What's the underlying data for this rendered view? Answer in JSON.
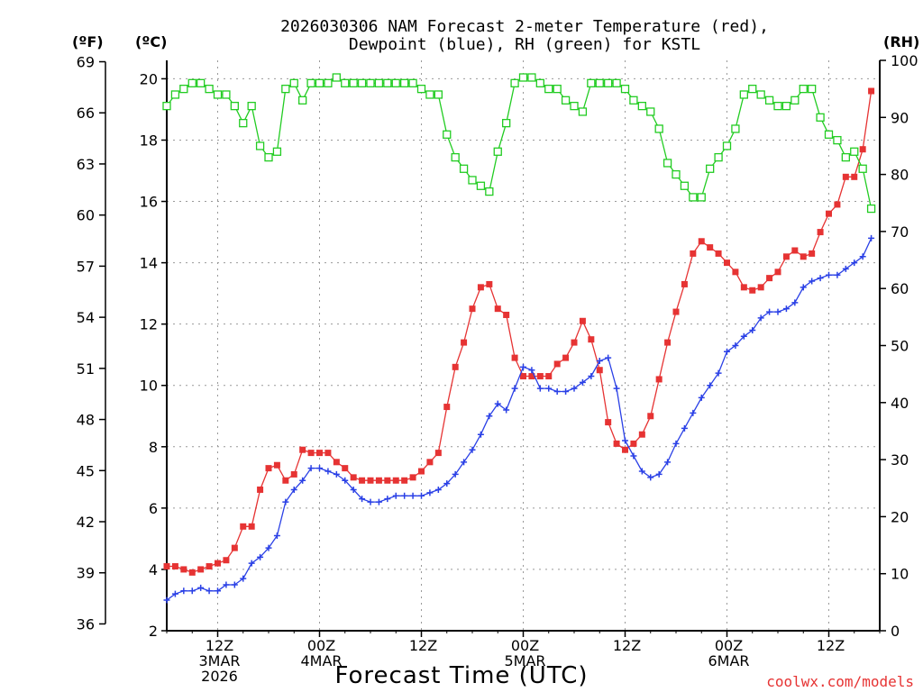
{
  "chart_data": {
    "type": "line",
    "title": [
      "2026030306 NAM Forecast 2-meter Temperature (red),",
      "Dewpoint (blue), RH (green) for KSTL"
    ],
    "left_outer_unit": "(ºF)",
    "left_inner_unit": "(ºC)",
    "right_unit": "(RH)",
    "xlabel": "Forecast Time (UTC)",
    "credit": "coolwx.com/models",
    "x_range_hours": [
      6,
      90
    ],
    "celsius_axis": {
      "ylim": [
        2,
        20.6
      ],
      "ticks": [
        2,
        4,
        6,
        8,
        10,
        12,
        14,
        16,
        18,
        20
      ]
    },
    "fahrenheit_axis": {
      "ticks": [
        36,
        39,
        42,
        45,
        48,
        51,
        54,
        57,
        60,
        63,
        66,
        69
      ]
    },
    "rh_axis": {
      "ylim": [
        0,
        100
      ],
      "ticks": [
        0,
        10,
        20,
        30,
        40,
        50,
        60,
        70,
        80,
        90,
        100
      ]
    },
    "x_ticks": [
      {
        "hour": 12,
        "lines": [
          "12Z",
          "3MAR",
          "2026"
        ]
      },
      {
        "hour": 24,
        "lines": [
          "00Z",
          "4MAR"
        ]
      },
      {
        "hour": 36,
        "lines": [
          "12Z"
        ]
      },
      {
        "hour": 48,
        "lines": [
          "00Z",
          "5MAR"
        ]
      },
      {
        "hour": 60,
        "lines": [
          "12Z"
        ]
      },
      {
        "hour": 72,
        "lines": [
          "00Z",
          "6MAR"
        ]
      },
      {
        "hour": 84,
        "lines": [
          "12Z"
        ]
      }
    ],
    "series": [
      {
        "name": "Temperature",
        "unit": "C",
        "color": "#e63333",
        "marker": "filled-square",
        "points": [
          [
            6,
            4.1
          ],
          [
            7,
            4.1
          ],
          [
            8,
            4.0
          ],
          [
            9,
            3.9
          ],
          [
            10,
            4.0
          ],
          [
            11,
            4.1
          ],
          [
            12,
            4.2
          ],
          [
            13,
            4.3
          ],
          [
            14,
            4.7
          ],
          [
            15,
            5.4
          ],
          [
            16,
            5.4
          ],
          [
            17,
            6.6
          ],
          [
            18,
            7.3
          ],
          [
            19,
            7.4
          ],
          [
            20,
            6.9
          ],
          [
            21,
            7.1
          ],
          [
            22,
            7.9
          ],
          [
            23,
            7.8
          ],
          [
            24,
            7.8
          ],
          [
            25,
            7.8
          ],
          [
            26,
            7.5
          ],
          [
            27,
            7.3
          ],
          [
            28,
            7.0
          ],
          [
            29,
            6.9
          ],
          [
            30,
            6.9
          ],
          [
            31,
            6.9
          ],
          [
            32,
            6.9
          ],
          [
            33,
            6.9
          ],
          [
            34,
            6.9
          ],
          [
            35,
            7.0
          ],
          [
            36,
            7.2
          ],
          [
            37,
            7.5
          ],
          [
            38,
            7.8
          ],
          [
            39,
            9.3
          ],
          [
            40,
            10.6
          ],
          [
            41,
            11.4
          ],
          [
            42,
            12.5
          ],
          [
            43,
            13.2
          ],
          [
            44,
            13.3
          ],
          [
            45,
            12.5
          ],
          [
            46,
            12.3
          ],
          [
            47,
            10.9
          ],
          [
            48,
            10.3
          ],
          [
            49,
            10.3
          ],
          [
            50,
            10.3
          ],
          [
            51,
            10.3
          ],
          [
            52,
            10.7
          ],
          [
            53,
            10.9
          ],
          [
            54,
            11.4
          ],
          [
            55,
            12.1
          ],
          [
            56,
            11.5
          ],
          [
            57,
            10.5
          ],
          [
            58,
            8.8
          ],
          [
            59,
            8.1
          ],
          [
            60,
            7.9
          ],
          [
            61,
            8.1
          ],
          [
            62,
            8.4
          ],
          [
            63,
            9.0
          ],
          [
            64,
            10.2
          ],
          [
            65,
            11.4
          ],
          [
            66,
            12.4
          ],
          [
            67,
            13.3
          ],
          [
            68,
            14.3
          ],
          [
            69,
            14.7
          ],
          [
            70,
            14.5
          ],
          [
            71,
            14.3
          ],
          [
            72,
            14.0
          ],
          [
            73,
            13.7
          ],
          [
            74,
            13.2
          ],
          [
            75,
            13.1
          ],
          [
            76,
            13.2
          ],
          [
            77,
            13.5
          ],
          [
            78,
            13.7
          ],
          [
            79,
            14.2
          ],
          [
            80,
            14.4
          ],
          [
            81,
            14.2
          ],
          [
            82,
            14.3
          ],
          [
            83,
            15.0
          ],
          [
            84,
            15.6
          ],
          [
            85,
            15.9
          ],
          [
            86,
            16.8
          ],
          [
            87,
            16.8
          ],
          [
            88,
            17.7
          ],
          [
            89,
            19.6
          ]
        ]
      },
      {
        "name": "Dewpoint",
        "unit": "C",
        "color": "#2a40e6",
        "marker": "plus",
        "points": [
          [
            6,
            3.0
          ],
          [
            7,
            3.2
          ],
          [
            8,
            3.3
          ],
          [
            9,
            3.3
          ],
          [
            10,
            3.4
          ],
          [
            11,
            3.3
          ],
          [
            12,
            3.3
          ],
          [
            13,
            3.5
          ],
          [
            14,
            3.5
          ],
          [
            15,
            3.7
          ],
          [
            16,
            4.2
          ],
          [
            17,
            4.4
          ],
          [
            18,
            4.7
          ],
          [
            19,
            5.1
          ],
          [
            20,
            6.2
          ],
          [
            21,
            6.6
          ],
          [
            22,
            6.9
          ],
          [
            23,
            7.3
          ],
          [
            24,
            7.3
          ],
          [
            25,
            7.2
          ],
          [
            26,
            7.1
          ],
          [
            27,
            6.9
          ],
          [
            28,
            6.6
          ],
          [
            29,
            6.3
          ],
          [
            30,
            6.2
          ],
          [
            31,
            6.2
          ],
          [
            32,
            6.3
          ],
          [
            33,
            6.4
          ],
          [
            34,
            6.4
          ],
          [
            35,
            6.4
          ],
          [
            36,
            6.4
          ],
          [
            37,
            6.5
          ],
          [
            38,
            6.6
          ],
          [
            39,
            6.8
          ],
          [
            40,
            7.1
          ],
          [
            41,
            7.5
          ],
          [
            42,
            7.9
          ],
          [
            43,
            8.4
          ],
          [
            44,
            9.0
          ],
          [
            45,
            9.4
          ],
          [
            46,
            9.2
          ],
          [
            47,
            9.9
          ],
          [
            48,
            10.6
          ],
          [
            49,
            10.5
          ],
          [
            50,
            9.9
          ],
          [
            51,
            9.9
          ],
          [
            52,
            9.8
          ],
          [
            53,
            9.8
          ],
          [
            54,
            9.9
          ],
          [
            55,
            10.1
          ],
          [
            56,
            10.3
          ],
          [
            57,
            10.8
          ],
          [
            58,
            10.9
          ],
          [
            59,
            9.9
          ],
          [
            60,
            8.2
          ],
          [
            61,
            7.7
          ],
          [
            62,
            7.2
          ],
          [
            63,
            7.0
          ],
          [
            64,
            7.1
          ],
          [
            65,
            7.5
          ],
          [
            66,
            8.1
          ],
          [
            67,
            8.6
          ],
          [
            68,
            9.1
          ],
          [
            69,
            9.6
          ],
          [
            70,
            10.0
          ],
          [
            71,
            10.4
          ],
          [
            72,
            11.1
          ],
          [
            73,
            11.3
          ],
          [
            74,
            11.6
          ],
          [
            75,
            11.8
          ],
          [
            76,
            12.2
          ],
          [
            77,
            12.4
          ],
          [
            78,
            12.4
          ],
          [
            79,
            12.5
          ],
          [
            80,
            12.7
          ],
          [
            81,
            13.2
          ],
          [
            82,
            13.4
          ],
          [
            83,
            13.5
          ],
          [
            84,
            13.6
          ],
          [
            85,
            13.6
          ],
          [
            86,
            13.8
          ],
          [
            87,
            14.0
          ],
          [
            88,
            14.2
          ],
          [
            89,
            14.8
          ]
        ]
      },
      {
        "name": "RH",
        "unit": "%",
        "color": "#22cc22",
        "marker": "open-square",
        "points": [
          [
            6,
            92
          ],
          [
            7,
            94
          ],
          [
            8,
            95
          ],
          [
            9,
            96
          ],
          [
            10,
            96
          ],
          [
            11,
            95
          ],
          [
            12,
            94
          ],
          [
            13,
            94
          ],
          [
            14,
            92
          ],
          [
            15,
            89
          ],
          [
            16,
            92
          ],
          [
            17,
            85
          ],
          [
            18,
            83
          ],
          [
            19,
            84
          ],
          [
            20,
            95
          ],
          [
            21,
            96
          ],
          [
            22,
            93
          ],
          [
            23,
            96
          ],
          [
            24,
            96
          ],
          [
            25,
            96
          ],
          [
            26,
            97
          ],
          [
            27,
            96
          ],
          [
            28,
            96
          ],
          [
            29,
            96
          ],
          [
            30,
            96
          ],
          [
            31,
            96
          ],
          [
            32,
            96
          ],
          [
            33,
            96
          ],
          [
            34,
            96
          ],
          [
            35,
            96
          ],
          [
            36,
            95
          ],
          [
            37,
            94
          ],
          [
            38,
            94
          ],
          [
            39,
            87
          ],
          [
            40,
            83
          ],
          [
            41,
            81
          ],
          [
            42,
            79
          ],
          [
            43,
            78
          ],
          [
            44,
            77
          ],
          [
            45,
            84
          ],
          [
            46,
            89
          ],
          [
            47,
            96
          ],
          [
            48,
            97
          ],
          [
            49,
            97
          ],
          [
            50,
            96
          ],
          [
            51,
            95
          ],
          [
            52,
            95
          ],
          [
            53,
            93
          ],
          [
            54,
            92
          ],
          [
            55,
            91
          ],
          [
            56,
            96
          ],
          [
            57,
            96
          ],
          [
            58,
            96
          ],
          [
            59,
            96
          ],
          [
            60,
            95
          ],
          [
            61,
            93
          ],
          [
            62,
            92
          ],
          [
            63,
            91
          ],
          [
            64,
            88
          ],
          [
            65,
            82
          ],
          [
            66,
            80
          ],
          [
            67,
            78
          ],
          [
            68,
            76
          ],
          [
            69,
            76
          ],
          [
            70,
            81
          ],
          [
            71,
            83
          ],
          [
            72,
            85
          ],
          [
            73,
            88
          ],
          [
            74,
            94
          ],
          [
            75,
            95
          ],
          [
            76,
            94
          ],
          [
            77,
            93
          ],
          [
            78,
            92
          ],
          [
            79,
            92
          ],
          [
            80,
            93
          ],
          [
            81,
            95
          ],
          [
            82,
            95
          ],
          [
            83,
            90
          ],
          [
            84,
            87
          ],
          [
            85,
            86
          ],
          [
            86,
            83
          ],
          [
            87,
            84
          ],
          [
            88,
            81
          ],
          [
            89,
            74
          ]
        ]
      }
    ]
  }
}
